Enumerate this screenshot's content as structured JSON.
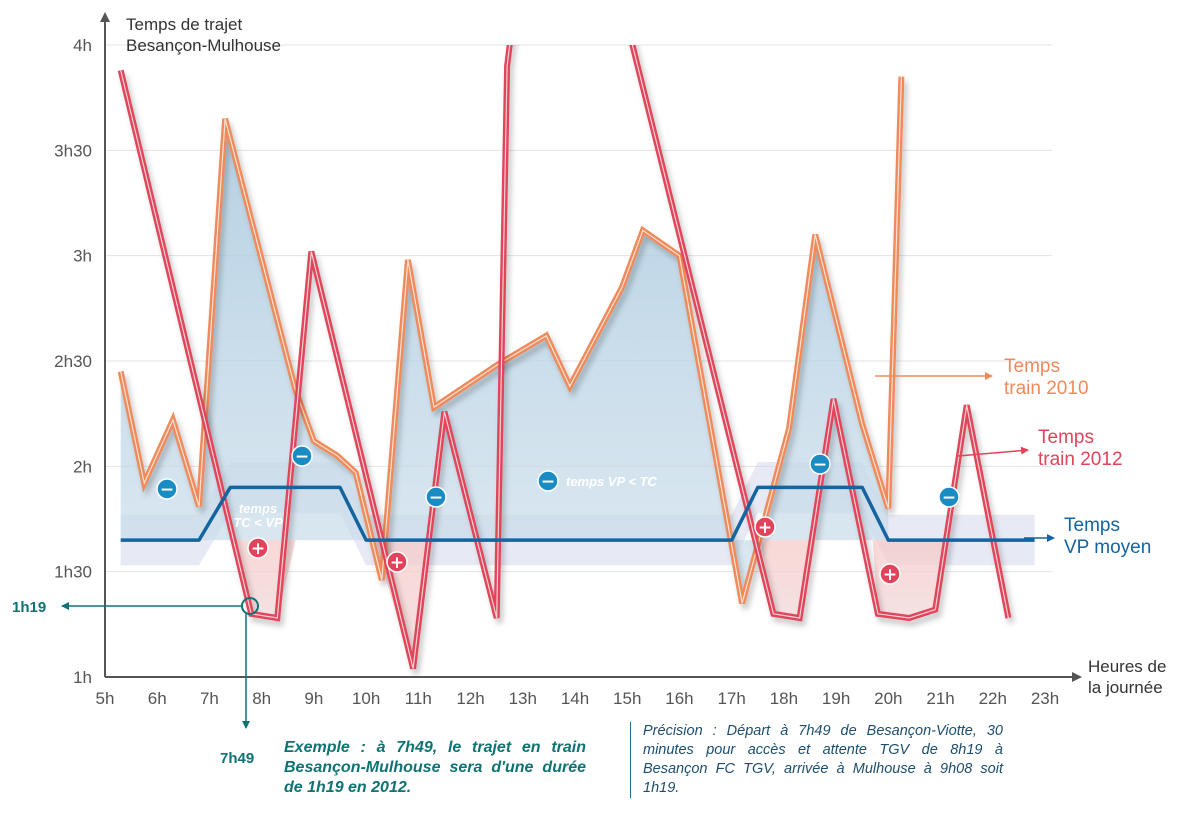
{
  "chart_data": {
    "type": "line",
    "y_axis_title": [
      "Temps de trajet",
      "Besançon-Mulhouse"
    ],
    "x_axis_title": [
      "Heures de",
      "la journée"
    ],
    "x_ticks": [
      "5h",
      "6h",
      "7h",
      "8h",
      "9h",
      "10h",
      "11h",
      "12h",
      "13h",
      "14h",
      "15h",
      "16h",
      "17h",
      "18h",
      "19h",
      "20h",
      "21h",
      "22h",
      "23h"
    ],
    "y_ticks": [
      {
        "value": 1.0,
        "label": "1h"
      },
      {
        "value": 1.5,
        "label": "1h30"
      },
      {
        "value": 2.0,
        "label": "2h"
      },
      {
        "value": 2.5,
        "label": "2h30"
      },
      {
        "value": 3.0,
        "label": "3h"
      },
      {
        "value": 3.5,
        "label": "3h30"
      },
      {
        "value": 4.0,
        "label": "4h"
      }
    ],
    "xlim": [
      5,
      23.5
    ],
    "ylim": [
      1.0,
      4.1
    ],
    "grid": true,
    "series": [
      {
        "name": "Temps train 2010",
        "label_lines": [
          "Temps",
          "train 2010"
        ],
        "color": "#ef8a5a",
        "points": [
          [
            5.3,
            2.45
          ],
          [
            5.75,
            1.92
          ],
          [
            6.3,
            2.22
          ],
          [
            6.8,
            1.81
          ],
          [
            7.3,
            3.65
          ],
          [
            8.65,
            2.36
          ],
          [
            9.0,
            2.12
          ],
          [
            9.45,
            2.05
          ],
          [
            9.8,
            1.97
          ],
          [
            10.3,
            1.46
          ],
          [
            10.8,
            2.98
          ],
          [
            11.3,
            2.28
          ],
          [
            12.5,
            2.48
          ],
          [
            13.45,
            2.62
          ],
          [
            13.9,
            2.38
          ],
          [
            14.9,
            2.85
          ],
          [
            15.3,
            3.12
          ],
          [
            16.0,
            3.0
          ],
          [
            16.7,
            2.04
          ],
          [
            17.2,
            1.35
          ],
          [
            18.1,
            2.18
          ],
          [
            18.6,
            3.1
          ],
          [
            19.0,
            2.7
          ],
          [
            19.5,
            2.2
          ],
          [
            20.0,
            1.8
          ],
          [
            20.25,
            3.85
          ]
        ]
      },
      {
        "name": "Temps train 2012",
        "label_lines": [
          "Temps",
          "train 2012"
        ],
        "color": "#e0445a",
        "points": [
          [
            5.3,
            3.88
          ],
          [
            7.8,
            1.3
          ],
          [
            8.3,
            1.28
          ],
          [
            8.95,
            3.02
          ],
          [
            10.9,
            1.04
          ],
          [
            11.5,
            2.26
          ],
          [
            12.5,
            1.28
          ],
          [
            12.7,
            3.9
          ],
          [
            12.8,
            4.1
          ],
          [
            15.0,
            4.1
          ],
          [
            17.8,
            1.3
          ],
          [
            18.3,
            1.28
          ],
          [
            18.95,
            2.32
          ],
          [
            19.8,
            1.3
          ],
          [
            20.4,
            1.28
          ],
          [
            20.9,
            1.32
          ],
          [
            21.5,
            2.29
          ],
          [
            22.3,
            1.28
          ]
        ]
      },
      {
        "name": "Temps VP moyen",
        "label_lines": [
          "Temps",
          "VP moyen"
        ],
        "color": "#1464a0",
        "points": [
          [
            5.3,
            1.65
          ],
          [
            6.8,
            1.65
          ],
          [
            7.4,
            1.9
          ],
          [
            9.5,
            1.9
          ],
          [
            10.0,
            1.65
          ],
          [
            17.0,
            1.65
          ],
          [
            17.5,
            1.9
          ],
          [
            19.5,
            1.9
          ],
          [
            20.0,
            1.65
          ],
          [
            22.8,
            1.65
          ]
        ]
      }
    ],
    "annotations": {
      "example_label_y": "1h19",
      "example_label_x": "7h49",
      "vp_lt_tc": "temps VP < TC",
      "tc_lt_vp_line1": "temps",
      "tc_lt_vp_line2": "TC < VP",
      "minus_sign": "−",
      "plus_sign": "+"
    }
  },
  "notes": {
    "example": "Exemple : à 7h49, le trajet en train Besançon-Mulhouse sera d'une durée de 1h19 en 2012.",
    "precision": "Précision : Départ à 7h49 de Besançon-Viotte, 30 minutes pour accès et attente TGV de 8h19 à Besançon FC TGV, arrivée à Mulhouse à 9h08 soit 1h19."
  }
}
